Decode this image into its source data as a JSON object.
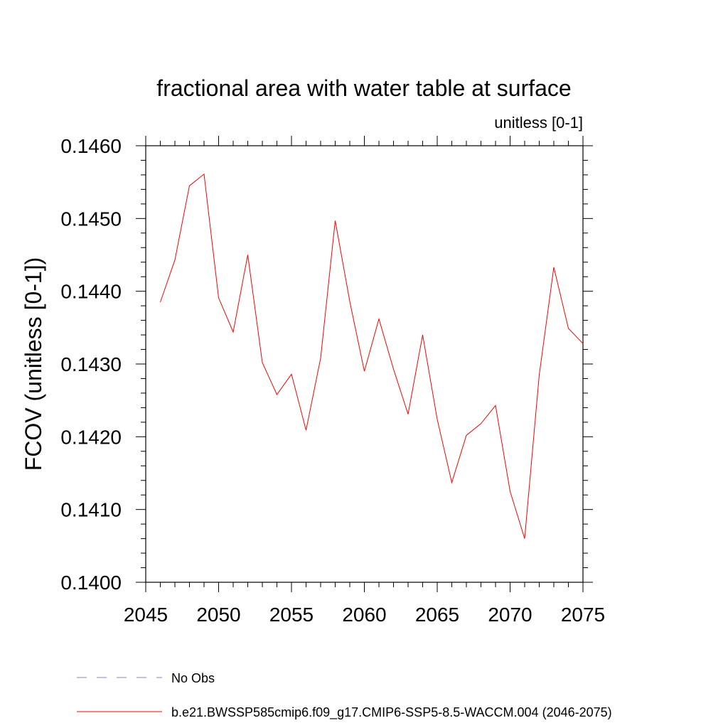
{
  "chart_data": {
    "type": "line",
    "title": "fractional area with water table at surface",
    "subtitle": "unitless [0-1]",
    "xlabel": "",
    "ylabel": "FCOV  (unitless [0-1])",
    "xlim": [
      2045,
      2075
    ],
    "ylim": [
      0.14,
      0.146
    ],
    "x_ticks": [
      "2045",
      "2050",
      "2055",
      "2060",
      "2065",
      "2070",
      "2075"
    ],
    "y_ticks": [
      "0.1400",
      "0.1410",
      "0.1420",
      "0.1430",
      "0.1440",
      "0.1450",
      "0.1460"
    ],
    "grid": false,
    "legend_position": "bottom",
    "series": [
      {
        "name": "b.e21.BWSSP585cmip6.f09_g17.CMIP6-SSP5-8.5-WACCM.004 (2046-2075)",
        "color": "#ff0000",
        "style": "solid",
        "x": [
          2046,
          2047,
          2048,
          2049,
          2050,
          2051,
          2052,
          2053,
          2054,
          2055,
          2056,
          2057,
          2058,
          2059,
          2060,
          2061,
          2062,
          2063,
          2064,
          2065,
          2066,
          2067,
          2068,
          2069,
          2070,
          2071,
          2072,
          2073,
          2074,
          2075
        ],
        "values": [
          0.14385,
          0.14443,
          0.14545,
          0.14561,
          0.14391,
          0.14344,
          0.1445,
          0.14302,
          0.14258,
          0.14286,
          0.14209,
          0.14308,
          0.14497,
          0.14386,
          0.1429,
          0.14362,
          0.14293,
          0.14231,
          0.1434,
          0.14224,
          0.14137,
          0.14202,
          0.14218,
          0.14243,
          0.14125,
          0.1406,
          0.14285,
          0.14433,
          0.14349,
          0.14328
        ]
      }
    ],
    "legend": [
      {
        "label": "No Obs",
        "color": "#8080c0",
        "style": "dashed"
      },
      {
        "label": "b.e21.BWSSP585cmip6.f09_g17.CMIP6-SSP5-8.5-WACCM.004 (2046-2075)",
        "color": "#ff0000",
        "style": "solid"
      }
    ]
  }
}
